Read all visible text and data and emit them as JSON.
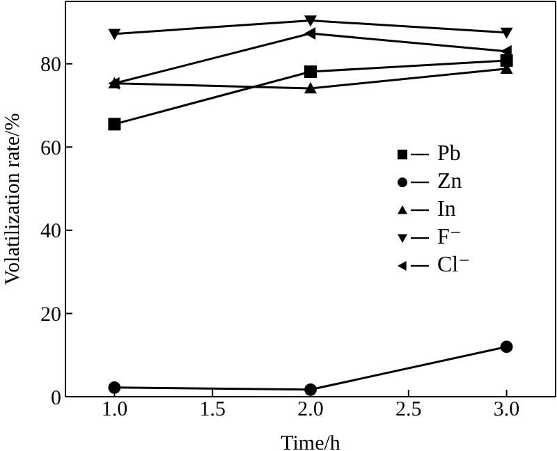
{
  "chart_data": {
    "type": "line",
    "xlabel": "Time/h",
    "ylabel": "Volatilization rate/%",
    "x": [
      1.0,
      2.0,
      3.0
    ],
    "series": [
      {
        "name": "Pb",
        "color": "#000000",
        "marker": "square",
        "values": [
          65.5,
          78.1,
          80.8
        ]
      },
      {
        "name": "Zn",
        "color": "#000000",
        "marker": "circle",
        "values": [
          2.2,
          1.7,
          12.0
        ]
      },
      {
        "name": "In",
        "color": "#000000",
        "marker": "triangle",
        "values": [
          75.3,
          74.1,
          78.8
        ]
      },
      {
        "name": "F⁻",
        "color": "#000000",
        "marker": "triangle-down",
        "values": [
          87.2,
          90.4,
          87.5
        ]
      },
      {
        "name": "Cl⁻",
        "color": "#000000",
        "marker": "triangle-left",
        "values": [
          75.3,
          87.3,
          83.0
        ]
      }
    ],
    "xlim": [
      0.75,
      3.25
    ],
    "xticks": [
      {
        "value": 1.0,
        "label": "1.0"
      },
      {
        "value": 1.5,
        "label": "1.5"
      },
      {
        "value": 2.0,
        "label": "2.0"
      },
      {
        "value": 2.5,
        "label": "2.5"
      },
      {
        "value": 3.0,
        "label": "3.0"
      }
    ],
    "ylim": [
      0,
      95
    ],
    "yticks": [
      0,
      20,
      40,
      60,
      80
    ],
    "grid": false,
    "legend": "center right",
    "line_style": "solid"
  }
}
